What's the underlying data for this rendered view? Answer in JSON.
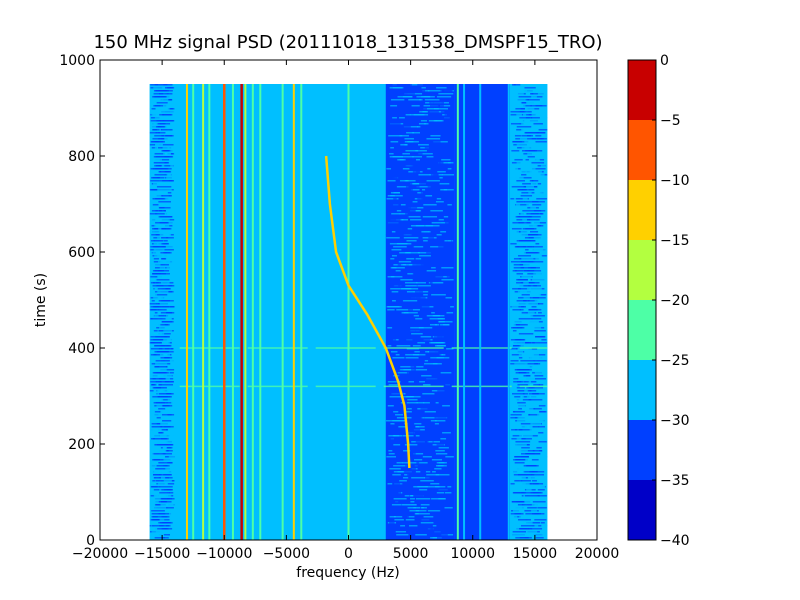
{
  "chart_data": {
    "type": "heatmap",
    "title": "150 MHz signal PSD (20111018_131538_DMSPF15_TRO)",
    "xlabel": "frequency (Hz)",
    "ylabel": "time (s)",
    "xlim": [
      -20000,
      20000
    ],
    "ylim": [
      0,
      1000
    ],
    "data_extent": {
      "x": [
        -16000,
        16000
      ],
      "y": [
        0,
        950
      ]
    },
    "xticks": [
      -20000,
      -15000,
      -10000,
      -5000,
      0,
      5000,
      10000,
      15000,
      20000
    ],
    "xtick_labels": [
      "−20000",
      "−15000",
      "−10000",
      "−5000",
      "0",
      "5000",
      "10000",
      "15000",
      "20000"
    ],
    "yticks": [
      0,
      200,
      400,
      600,
      800,
      1000
    ],
    "ytick_labels": [
      "0",
      "200",
      "400",
      "600",
      "800",
      "1000"
    ],
    "colorbar": {
      "levels": [
        -40,
        -35,
        -30,
        -25,
        -20,
        -15,
        -10,
        -5,
        0
      ],
      "tick_labels": [
        "−40",
        "−35",
        "−30",
        "−25",
        "−20",
        "−15",
        "−10",
        "−5",
        "0"
      ],
      "colors": [
        "#0000c8",
        "#0040ff",
        "#00bfff",
        "#4dffa6",
        "#b3ff40",
        "#ffd000",
        "#ff5500",
        "#c80000"
      ]
    },
    "background_level_db": -27,
    "regions": [
      {
        "x": [
          -16000,
          -14000
        ],
        "level_db": -29,
        "note": "striped band"
      },
      {
        "x": [
          3000,
          8500
        ],
        "level_db": -31,
        "note": "noisy"
      },
      {
        "x": [
          8500,
          13000
        ],
        "level_db": -33
      },
      {
        "x": [
          13000,
          16000
        ],
        "level_db": -30,
        "note": "striped band"
      }
    ],
    "lines": [
      {
        "x": -13000,
        "level_db": -14
      },
      {
        "x": -12500,
        "level_db": -22
      },
      {
        "x": -11700,
        "level_db": -17
      },
      {
        "x": -11200,
        "level_db": -22
      },
      {
        "x": -10000,
        "level_db": -8
      },
      {
        "x": -9300,
        "level_db": -22
      },
      {
        "x": -8600,
        "level_db": -3
      },
      {
        "x": -8300,
        "level_db": -18
      },
      {
        "x": -7700,
        "level_db": -22
      },
      {
        "x": -7100,
        "level_db": -22
      },
      {
        "x": -5300,
        "level_db": -22
      },
      {
        "x": -4400,
        "level_db": -13
      },
      {
        "x": -3800,
        "level_db": -22
      },
      {
        "x": 0,
        "level_db": -22
      },
      {
        "x": 8800,
        "level_db": -22
      },
      {
        "x": 9300,
        "level_db": -27
      },
      {
        "x": 10600,
        "level_db": -27
      },
      {
        "x": 12900,
        "level_db": -27
      }
    ],
    "doppler_curve": {
      "level_db": -15,
      "points": [
        [
          -1800,
          800
        ],
        [
          -1500,
          700
        ],
        [
          -1000,
          600
        ],
        [
          0,
          530
        ],
        [
          1500,
          470
        ],
        [
          3000,
          400
        ],
        [
          4000,
          330
        ],
        [
          4500,
          280
        ],
        [
          4800,
          200
        ],
        [
          4900,
          150
        ]
      ]
    },
    "horizontal_lines_s": [
      320,
      400
    ]
  }
}
